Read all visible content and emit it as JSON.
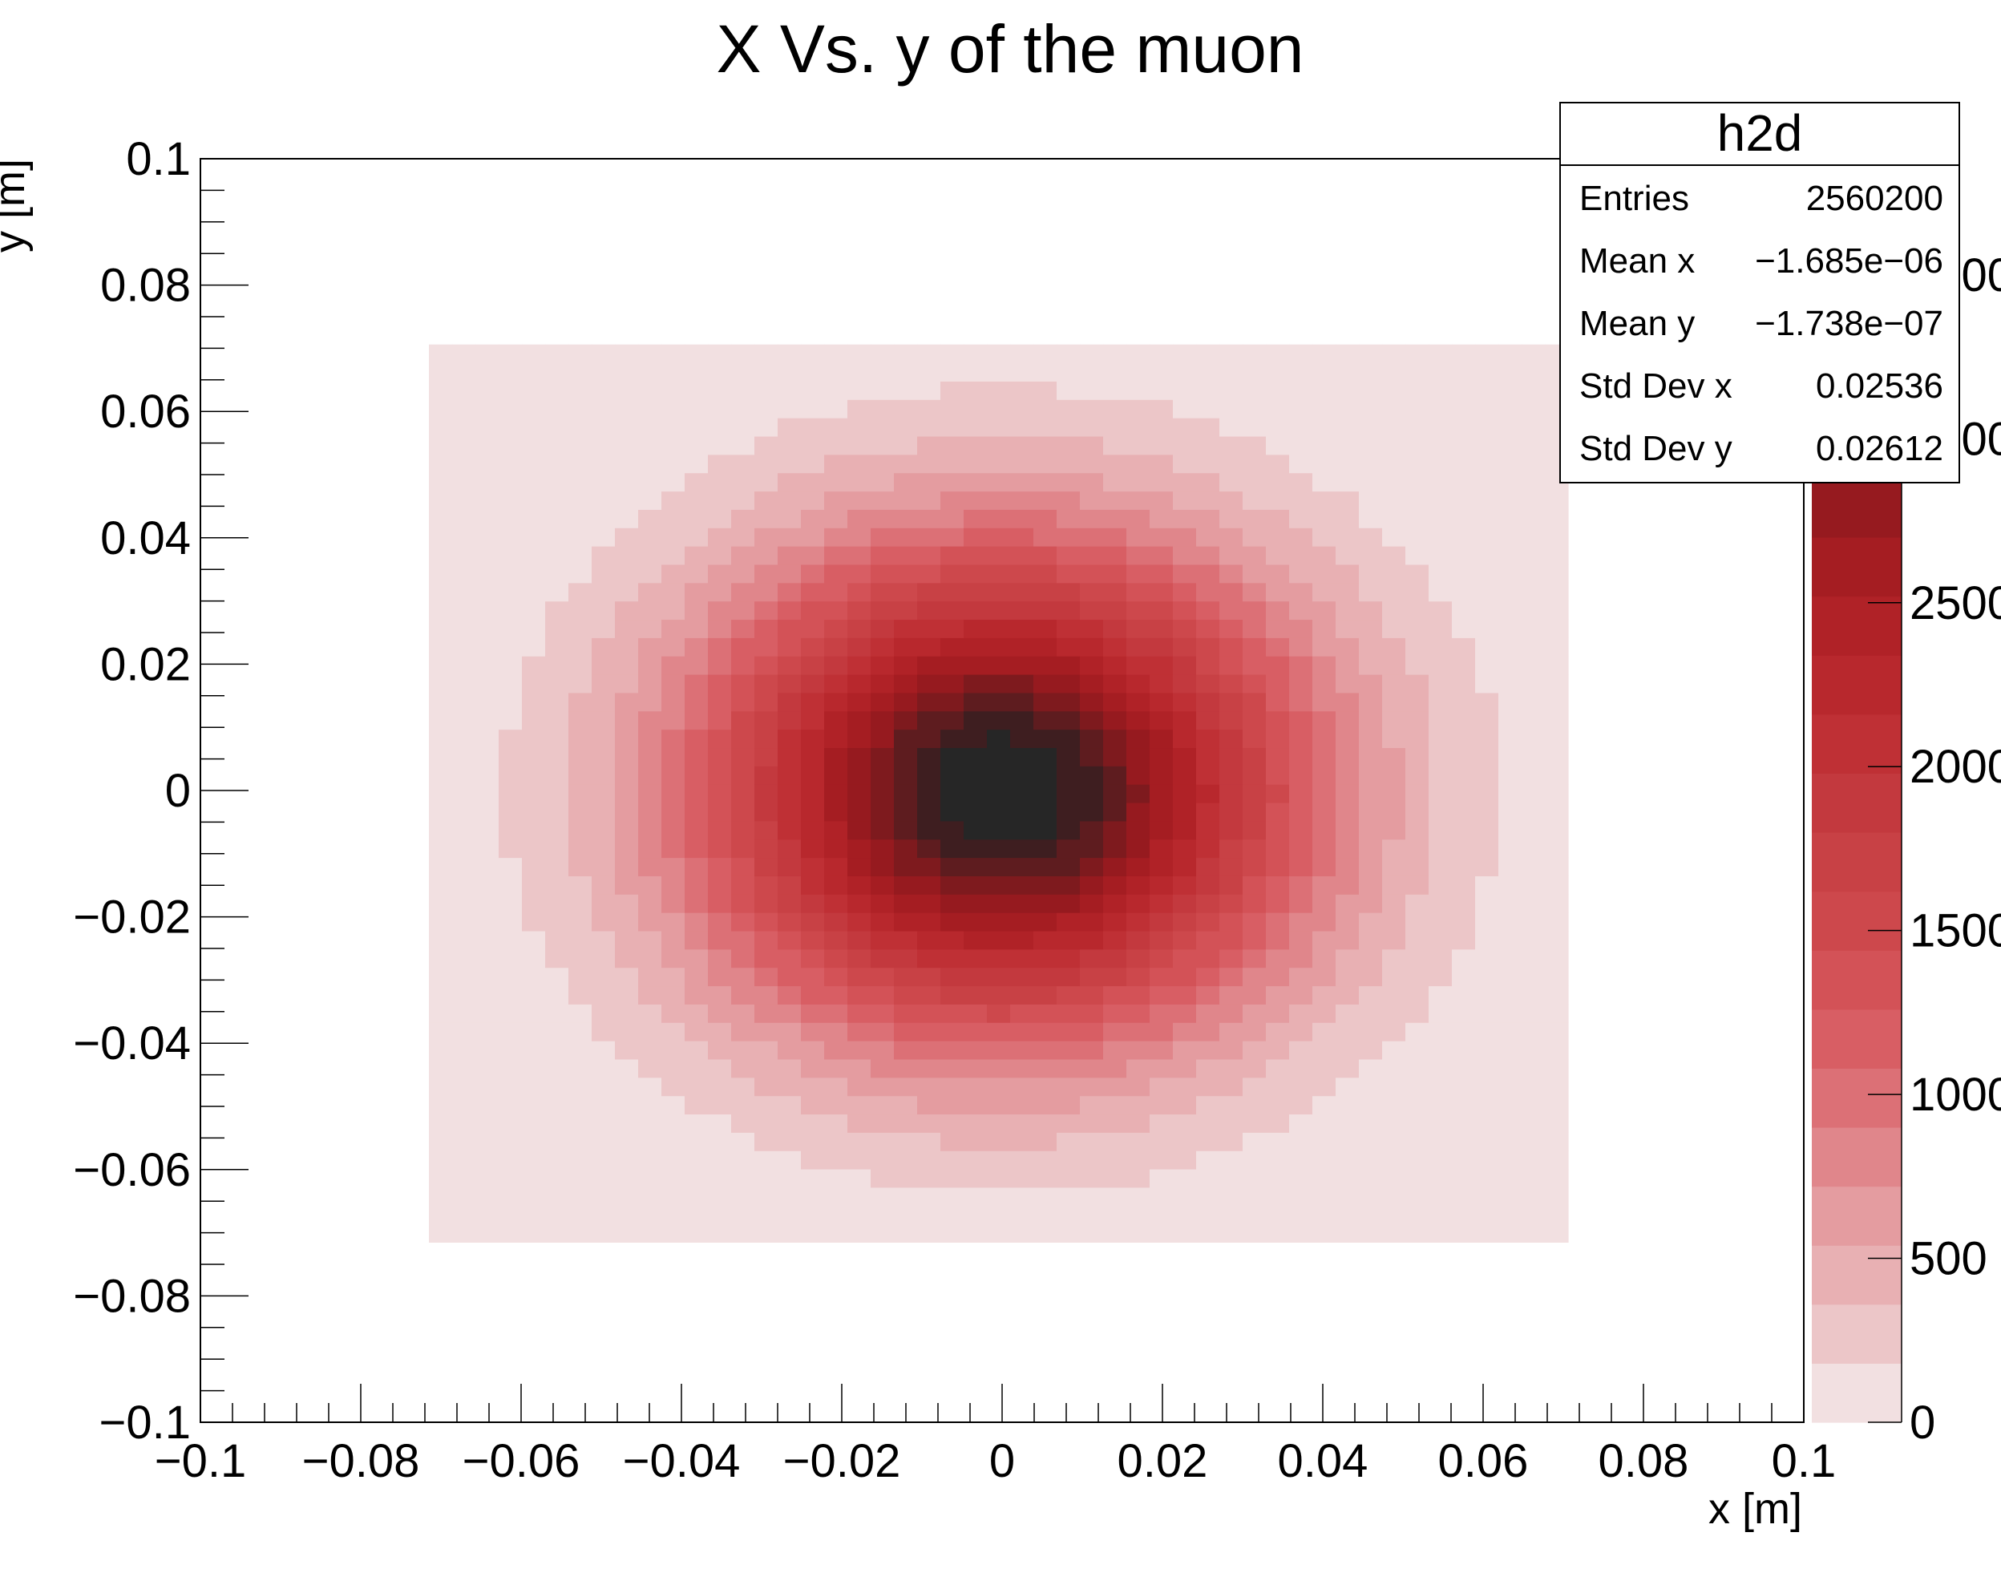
{
  "chart_data": {
    "type": "heatmap",
    "title": "X  Vs. y of the muon",
    "xlabel": "x [m]",
    "ylabel": "y [m]",
    "xlim": [
      -0.1,
      0.1
    ],
    "ylim": [
      -0.1,
      0.1
    ],
    "x_ticks": [
      "−0.1",
      "−0.08",
      "−0.06",
      "−0.04",
      "−0.02",
      "0",
      "0.02",
      "0.04",
      "0.06",
      "0.08",
      "0.1"
    ],
    "y_ticks": [
      "−0.1",
      "−0.08",
      "−0.06",
      "−0.04",
      "−0.02",
      "0",
      "0.02",
      "0.04",
      "0.06",
      "0.08",
      "0.1"
    ],
    "colorbar": {
      "range": [
        0,
        3600
      ],
      "ticks": [
        "0",
        "500",
        "1000",
        "1500",
        "2000",
        "2500",
        "3000",
        "3500"
      ],
      "colors": [
        "#f2e0e1",
        "#ecc6c8",
        "#e8b0b3",
        "#e49ca0",
        "#e0868b",
        "#dc7076",
        "#d85e64",
        "#d35257",
        "#cd484c",
        "#c84145",
        "#c3393e",
        "#bf3035",
        "#b8282d",
        "#b02227",
        "#a51d22",
        "#961a1f",
        "#7e1a1e",
        "#5e1c1f",
        "#3e1e20",
        "#262626"
      ]
    },
    "distribution": {
      "x_range": [
        -0.0715,
        0.0715
      ],
      "y_range": [
        -0.0715,
        0.0715
      ],
      "bin_width": 0.0029,
      "mean_x": 0,
      "mean_y": 0,
      "sigma_x": 0.0254,
      "sigma_y": 0.0261,
      "peak": 3600
    },
    "stats_box": {
      "name": "h2d",
      "rows": [
        {
          "label": "Entries",
          "value": "2560200"
        },
        {
          "label": "Mean x",
          "value": "−1.685e−06"
        },
        {
          "label": "Mean y",
          "value": "−1.738e−07"
        },
        {
          "label": "Std Dev x",
          "value": "0.02536"
        },
        {
          "label": "Std Dev y",
          "value": "0.02612"
        }
      ]
    }
  }
}
